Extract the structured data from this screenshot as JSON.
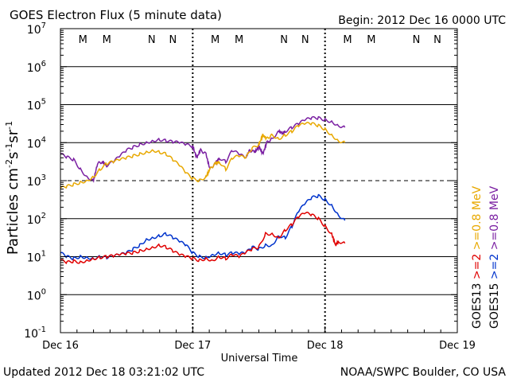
{
  "header": {
    "title": "GOES Electron Flux (5 minute data)",
    "begin": "Begin: 2012 Dec 16 0000 UTC"
  },
  "footer": {
    "updated": "Updated 2012 Dec 18 03:21:02 UTC",
    "source": "NOAA/SWPC Boulder, CO USA"
  },
  "colors": {
    "goes15_high": "#7a1fa2",
    "goes13_high": "#e8a800",
    "goes15_low": "#0033cc",
    "goes13_low": "#e00000",
    "label_m": "#cc0000",
    "label_n_blue": "#0033cc",
    "label_n_red": "#cc0000"
  },
  "chart_data": {
    "type": "line",
    "title": "GOES Electron Flux (5 minute data)",
    "xlabel": "Universal Time",
    "ylabel": "Particles cm-2s-1sr-1",
    "ylabel_parts": [
      "Particles cm",
      "-2",
      "s",
      "-1",
      "sr",
      "-1"
    ],
    "yscale": "log",
    "ylim_exp": [
      -1,
      7
    ],
    "y_ticks": [
      {
        "exp": -1,
        "base": "10",
        "sup": "-1"
      },
      {
        "exp": 0,
        "base": "10",
        "sup": "0"
      },
      {
        "exp": 1,
        "base": "10",
        "sup": "1"
      },
      {
        "exp": 2,
        "base": "10",
        "sup": "2"
      },
      {
        "exp": 3,
        "base": "10",
        "sup": "3"
      },
      {
        "exp": 4,
        "base": "10",
        "sup": "4"
      },
      {
        "exp": 5,
        "base": "10",
        "sup": "5"
      },
      {
        "exp": 6,
        "base": "10",
        "sup": "6"
      },
      {
        "exp": 7,
        "base": "10",
        "sup": "7"
      }
    ],
    "xlim_days": [
      0,
      3
    ],
    "x_ticks": [
      {
        "day": 0,
        "label": "Dec 16"
      },
      {
        "day": 1,
        "label": "Dec 17"
      },
      {
        "day": 2,
        "label": "Dec 18"
      },
      {
        "day": 3,
        "label": "Dec 19"
      }
    ],
    "dashed_threshold_exp": 3,
    "top_markers": [
      {
        "day": 0.17,
        "label": "M",
        "color": "m"
      },
      {
        "day": 0.35,
        "label": "M",
        "color": "n_blue"
      },
      {
        "day": 0.69,
        "label": "N",
        "color": "m"
      },
      {
        "day": 0.85,
        "label": "N",
        "color": "n_blue"
      },
      {
        "day": 1.17,
        "label": "M",
        "color": "m"
      },
      {
        "day": 1.35,
        "label": "M",
        "color": "n_blue"
      },
      {
        "day": 1.69,
        "label": "N",
        "color": "m"
      },
      {
        "day": 1.85,
        "label": "N",
        "color": "n_blue"
      },
      {
        "day": 2.17,
        "label": "M",
        "color": "m"
      },
      {
        "day": 2.35,
        "label": "M",
        "color": "n_blue"
      },
      {
        "day": 2.69,
        "label": "N",
        "color": "m"
      },
      {
        "day": 2.85,
        "label": "N",
        "color": "n_blue"
      }
    ],
    "legend": [
      {
        "sat": "GOES13",
        "energy": ">=2",
        "energy2": ">=0.8 MeV",
        "color_low": "goes13_low",
        "color_high": "goes13_high"
      },
      {
        "sat": "GOES15",
        "energy": ">=2",
        "energy2": ">=0.8 MeV",
        "color_low": "goes15_low",
        "color_high": "goes15_high"
      }
    ],
    "series": [
      {
        "name": "GOES15 >=0.8 MeV",
        "color_key": "goes15_high",
        "points": [
          [
            0,
            3.7
          ],
          [
            0.05,
            3.62
          ],
          [
            0.1,
            3.55
          ],
          [
            0.15,
            3.3
          ],
          [
            0.2,
            3.1
          ],
          [
            0.25,
            3.0
          ],
          [
            0.28,
            3.45
          ],
          [
            0.32,
            3.5
          ],
          [
            0.35,
            3.4
          ],
          [
            0.4,
            3.5
          ],
          [
            0.45,
            3.65
          ],
          [
            0.5,
            3.8
          ],
          [
            0.55,
            3.88
          ],
          [
            0.6,
            3.95
          ],
          [
            0.65,
            4.0
          ],
          [
            0.7,
            4.05
          ],
          [
            0.75,
            4.08
          ],
          [
            0.8,
            4.05
          ],
          [
            0.85,
            4.02
          ],
          [
            0.9,
            4.0
          ],
          [
            0.95,
            3.95
          ],
          [
            1.0,
            3.9
          ],
          [
            1.03,
            3.6
          ],
          [
            1.06,
            3.8
          ],
          [
            1.1,
            3.7
          ],
          [
            1.13,
            3.3
          ],
          [
            1.17,
            3.45
          ],
          [
            1.2,
            3.6
          ],
          [
            1.25,
            3.5
          ],
          [
            1.3,
            3.8
          ],
          [
            1.35,
            3.7
          ],
          [
            1.4,
            3.6
          ],
          [
            1.43,
            3.8
          ],
          [
            1.47,
            3.75
          ],
          [
            1.5,
            3.9
          ],
          [
            1.53,
            3.7
          ],
          [
            1.56,
            4.0
          ],
          [
            1.6,
            4.1
          ],
          [
            1.65,
            4.3
          ],
          [
            1.68,
            4.25
          ],
          [
            1.7,
            4.3
          ],
          [
            1.75,
            4.4
          ],
          [
            1.8,
            4.5
          ],
          [
            1.85,
            4.6
          ],
          [
            1.9,
            4.65
          ],
          [
            1.95,
            4.65
          ],
          [
            2.0,
            4.6
          ],
          [
            2.05,
            4.55
          ],
          [
            2.1,
            4.45
          ],
          [
            2.15,
            4.4
          ]
        ]
      },
      {
        "name": "GOES13 >=0.8 MeV",
        "color_key": "goes13_high",
        "points": [
          [
            0,
            2.8
          ],
          [
            0.05,
            2.85
          ],
          [
            0.1,
            2.9
          ],
          [
            0.15,
            2.95
          ],
          [
            0.2,
            3.0
          ],
          [
            0.25,
            3.1
          ],
          [
            0.3,
            3.3
          ],
          [
            0.35,
            3.45
          ],
          [
            0.4,
            3.5
          ],
          [
            0.45,
            3.55
          ],
          [
            0.5,
            3.6
          ],
          [
            0.55,
            3.65
          ],
          [
            0.6,
            3.7
          ],
          [
            0.65,
            3.75
          ],
          [
            0.7,
            3.8
          ],
          [
            0.75,
            3.75
          ],
          [
            0.8,
            3.7
          ],
          [
            0.85,
            3.55
          ],
          [
            0.9,
            3.4
          ],
          [
            0.95,
            3.2
          ],
          [
            1.0,
            3.05
          ],
          [
            1.05,
            3.0
          ],
          [
            1.1,
            3.1
          ],
          [
            1.13,
            3.3
          ],
          [
            1.17,
            3.45
          ],
          [
            1.2,
            3.5
          ],
          [
            1.25,
            3.3
          ],
          [
            1.3,
            3.6
          ],
          [
            1.35,
            3.65
          ],
          [
            1.4,
            3.6
          ],
          [
            1.45,
            3.85
          ],
          [
            1.5,
            3.95
          ],
          [
            1.53,
            4.2
          ],
          [
            1.56,
            4.1
          ],
          [
            1.6,
            4.2
          ],
          [
            1.65,
            4.1
          ],
          [
            1.7,
            4.2
          ],
          [
            1.75,
            4.3
          ],
          [
            1.8,
            4.45
          ],
          [
            1.85,
            4.5
          ],
          [
            1.9,
            4.5
          ],
          [
            1.95,
            4.45
          ],
          [
            2.0,
            4.35
          ],
          [
            2.05,
            4.2
          ],
          [
            2.1,
            4.05
          ],
          [
            2.15,
            4.0
          ]
        ]
      },
      {
        "name": "GOES15 >=2 MeV",
        "color_key": "goes15_low",
        "points": [
          [
            0,
            1.1
          ],
          [
            0.05,
            1.0
          ],
          [
            0.1,
            0.95
          ],
          [
            0.15,
            1.0
          ],
          [
            0.2,
            0.98
          ],
          [
            0.25,
            0.95
          ],
          [
            0.3,
            1.0
          ],
          [
            0.35,
            0.98
          ],
          [
            0.4,
            1.02
          ],
          [
            0.45,
            1.05
          ],
          [
            0.5,
            1.1
          ],
          [
            0.55,
            1.2
          ],
          [
            0.6,
            1.3
          ],
          [
            0.65,
            1.45
          ],
          [
            0.7,
            1.5
          ],
          [
            0.75,
            1.55
          ],
          [
            0.8,
            1.6
          ],
          [
            0.85,
            1.5
          ],
          [
            0.9,
            1.4
          ],
          [
            0.95,
            1.3
          ],
          [
            1.0,
            1.1
          ],
          [
            1.05,
            1.0
          ],
          [
            1.1,
            0.98
          ],
          [
            1.15,
            1.05
          ],
          [
            1.2,
            1.1
          ],
          [
            1.25,
            1.05
          ],
          [
            1.3,
            1.1
          ],
          [
            1.35,
            1.08
          ],
          [
            1.4,
            1.1
          ],
          [
            1.45,
            1.25
          ],
          [
            1.5,
            1.2
          ],
          [
            1.55,
            1.3
          ],
          [
            1.6,
            1.3
          ],
          [
            1.65,
            1.55
          ],
          [
            1.7,
            1.5
          ],
          [
            1.75,
            1.8
          ],
          [
            1.8,
            2.2
          ],
          [
            1.85,
            2.4
          ],
          [
            1.9,
            2.55
          ],
          [
            1.95,
            2.6
          ],
          [
            2.0,
            2.5
          ],
          [
            2.05,
            2.35
          ],
          [
            2.1,
            2.1
          ],
          [
            2.15,
            1.95
          ]
        ]
      },
      {
        "name": "GOES13 >=2 MeV",
        "color_key": "goes13_low",
        "points": [
          [
            0,
            0.9
          ],
          [
            0.05,
            0.85
          ],
          [
            0.1,
            0.88
          ],
          [
            0.15,
            0.85
          ],
          [
            0.2,
            0.9
          ],
          [
            0.25,
            0.95
          ],
          [
            0.3,
            0.98
          ],
          [
            0.35,
            1.0
          ],
          [
            0.4,
            1.02
          ],
          [
            0.45,
            1.05
          ],
          [
            0.5,
            1.08
          ],
          [
            0.55,
            1.1
          ],
          [
            0.6,
            1.15
          ],
          [
            0.65,
            1.2
          ],
          [
            0.7,
            1.25
          ],
          [
            0.75,
            1.3
          ],
          [
            0.8,
            1.25
          ],
          [
            0.85,
            1.15
          ],
          [
            0.9,
            1.05
          ],
          [
            0.95,
            1.0
          ],
          [
            1.0,
            0.95
          ],
          [
            1.05,
            0.9
          ],
          [
            1.1,
            0.95
          ],
          [
            1.15,
            0.9
          ],
          [
            1.2,
            1.0
          ],
          [
            1.25,
            0.95
          ],
          [
            1.3,
            1.05
          ],
          [
            1.35,
            1.0
          ],
          [
            1.4,
            1.1
          ],
          [
            1.45,
            1.2
          ],
          [
            1.5,
            1.25
          ],
          [
            1.55,
            1.6
          ],
          [
            1.6,
            1.6
          ],
          [
            1.65,
            1.5
          ],
          [
            1.7,
            1.7
          ],
          [
            1.75,
            1.85
          ],
          [
            1.8,
            2.05
          ],
          [
            1.85,
            2.15
          ],
          [
            1.9,
            2.1
          ],
          [
            1.95,
            2.0
          ],
          [
            2.0,
            1.8
          ],
          [
            2.05,
            1.6
          ],
          [
            2.08,
            1.3
          ],
          [
            2.1,
            1.4
          ],
          [
            2.15,
            1.35
          ]
        ]
      }
    ]
  }
}
